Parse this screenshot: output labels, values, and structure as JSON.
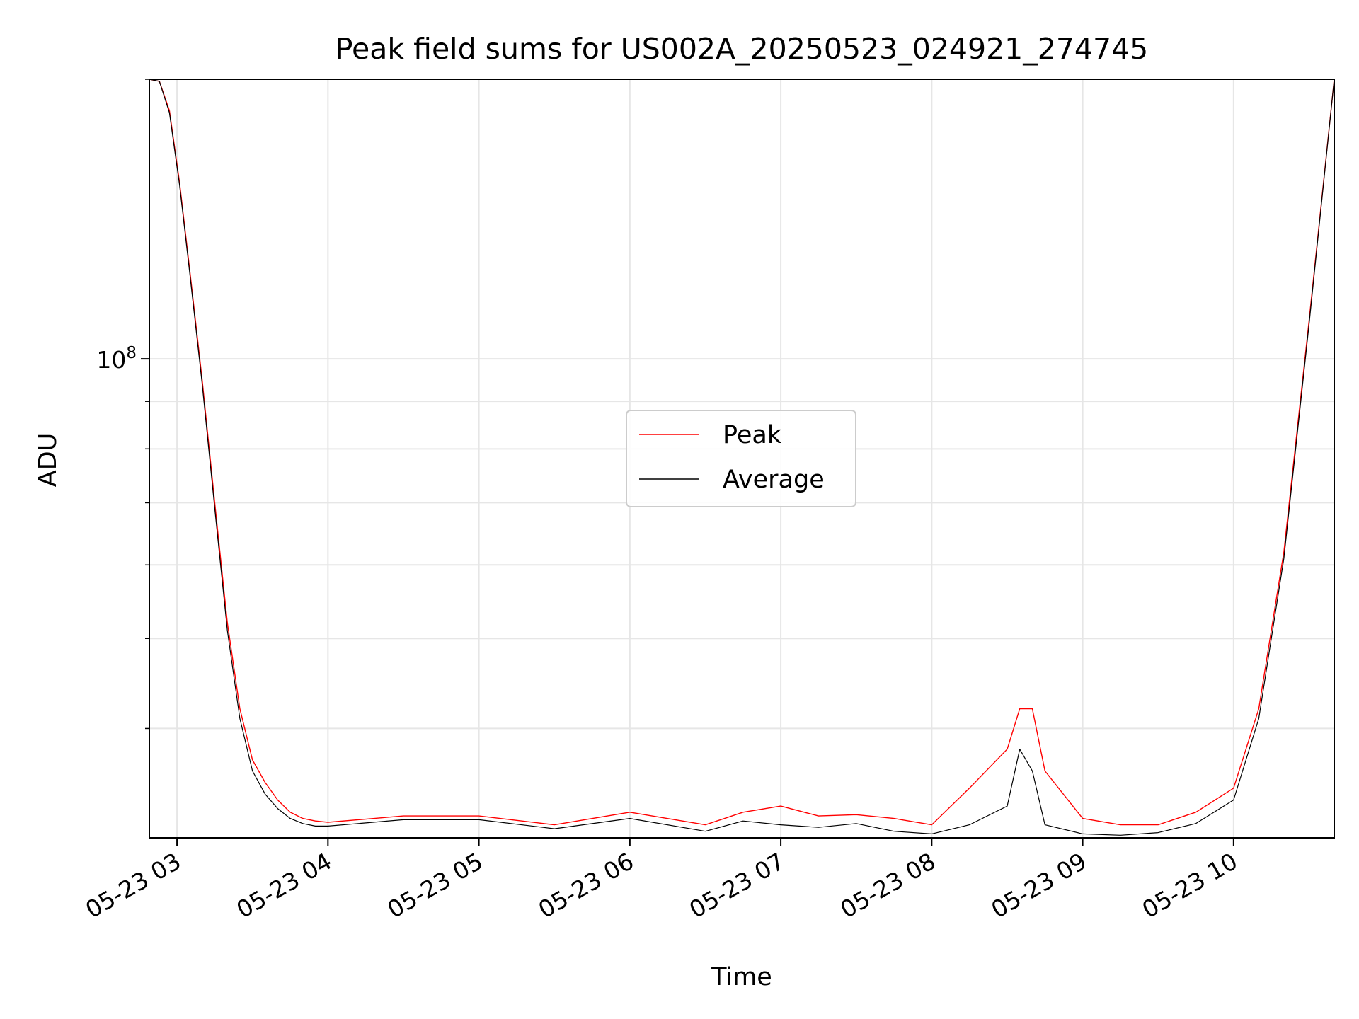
{
  "chart_data": {
    "type": "line",
    "title": "Peak field sums for US002A_20250523_024921_274745",
    "xlabel": "Time",
    "ylabel": "ADU",
    "yscale": "log",
    "grid": true,
    "legend_position": "center",
    "xlim": [
      "2025-05-23 02:49",
      "2025-05-23 10:40"
    ],
    "ylim": [
      30500000,
      200000000
    ],
    "x_tick_labels": [
      "05-23 03",
      "05-23 04",
      "05-23 05",
      "05-23 06",
      "05-23 07",
      "05-23 08",
      "05-23 09",
      "05-23 10"
    ],
    "y_tick_label": {
      "base": "10",
      "exponent": "8"
    },
    "series": [
      {
        "name": "Peak",
        "color": "#ff0000",
        "x": [
          "02:49",
          "02:53",
          "02:57",
          "03:01",
          "03:05",
          "03:10",
          "03:15",
          "03:20",
          "03:25",
          "03:30",
          "03:35",
          "03:40",
          "03:45",
          "03:50",
          "03:55",
          "04:00",
          "04:30",
          "05:00",
          "05:30",
          "06:00",
          "06:30",
          "06:45",
          "07:00",
          "07:15",
          "07:30",
          "07:45",
          "08:00",
          "08:15",
          "08:30",
          "08:35",
          "08:40",
          "08:45",
          "09:00",
          "09:15",
          "09:30",
          "09:45",
          "10:00",
          "10:10",
          "10:20",
          "10:30",
          "10:40"
        ],
        "y": [
          200000000,
          199000000,
          185000000,
          155000000,
          125000000,
          95000000,
          70000000,
          52000000,
          42000000,
          37000000,
          35000000,
          33500000,
          32500000,
          32000000,
          31800000,
          31700000,
          32200000,
          32200000,
          31500000,
          32500000,
          31500000,
          32500000,
          33000000,
          32200000,
          32300000,
          32000000,
          31500000,
          34500000,
          38000000,
          42000000,
          42000000,
          36000000,
          32000000,
          31500000,
          31500000,
          32500000,
          34500000,
          42000000,
          62000000,
          110000000,
          200000000
        ]
      },
      {
        "name": "Average",
        "color": "#000000",
        "x": [
          "02:49",
          "02:53",
          "02:57",
          "03:01",
          "03:05",
          "03:10",
          "03:15",
          "03:20",
          "03:25",
          "03:30",
          "03:35",
          "03:40",
          "03:45",
          "03:50",
          "03:55",
          "04:00",
          "04:30",
          "05:00",
          "05:30",
          "06:00",
          "06:30",
          "06:45",
          "07:00",
          "07:15",
          "07:30",
          "07:45",
          "08:00",
          "08:15",
          "08:30",
          "08:35",
          "08:40",
          "08:45",
          "09:00",
          "09:15",
          "09:30",
          "09:45",
          "10:00",
          "10:10",
          "10:20",
          "10:30",
          "10:40"
        ],
        "y": [
          200000000,
          199000000,
          184000000,
          154000000,
          124000000,
          94000000,
          69000000,
          51000000,
          41000000,
          36000000,
          34000000,
          32800000,
          32000000,
          31600000,
          31400000,
          31400000,
          31900000,
          31900000,
          31200000,
          32000000,
          31000000,
          31800000,
          31500000,
          31300000,
          31600000,
          31000000,
          30800000,
          31500000,
          33000000,
          38000000,
          36000000,
          31500000,
          30800000,
          30700000,
          30900000,
          31600000,
          33500000,
          41000000,
          61000000,
          109000000,
          200000000
        ]
      }
    ]
  }
}
